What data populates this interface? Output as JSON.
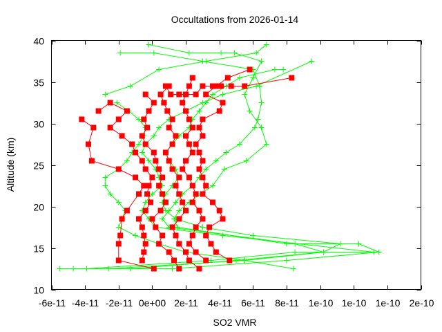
{
  "chart_data": {
    "type": "line",
    "title": "Occultations from 2026-01-14",
    "xlabel": "SO2 VMR",
    "ylabel": "Altitude (km)",
    "xlim": [
      -6e-11,
      1.6e-10
    ],
    "ylim": [
      10,
      40
    ],
    "grid": false,
    "legend": "none",
    "x_tick_labels": [
      "-6e-11",
      "-4e-11",
      "-2e-11",
      "0e+00",
      "2e-11",
      "4e-11",
      "6e-11",
      "8e-11",
      "1e-10",
      "1e-10",
      "1e-10",
      "2e-10"
    ],
    "x_tick_values": [
      -6e-11,
      -4e-11,
      -2e-11,
      0,
      2e-11,
      4e-11,
      6e-11,
      8e-11,
      1e-10,
      1.2e-10,
      1.4e-10,
      1.6e-10
    ],
    "y_tick_labels": [
      "10",
      "15",
      "20",
      "25",
      "30",
      "35",
      "40"
    ],
    "y_tick_values": [
      10,
      15,
      20,
      25,
      30,
      35,
      40
    ],
    "colors": {
      "red_series": "#ff0000",
      "green_series": "#00ff00",
      "frame": "#000000"
    },
    "series": [
      {
        "name": "red-profile-1",
        "color": "#ff0000",
        "marker": "square",
        "points": [
          [
            -4.2e-11,
            30.5
          ],
          [
            -3.5e-11,
            29.5
          ],
          [
            -3.8e-11,
            27.5
          ],
          [
            -3.6e-11,
            25.5
          ],
          [
            -2e-11,
            24.5
          ],
          [
            -1e-11,
            23.5
          ],
          [
            -5e-12,
            22.5
          ],
          [
            -8e-12,
            21.5
          ],
          [
            -1.5e-11,
            19.5
          ],
          [
            -1.8e-11,
            18.5
          ],
          [
            -1.9e-11,
            16.5
          ],
          [
            -2e-11,
            15.5
          ],
          [
            -2e-11,
            13.5
          ],
          [
            1e-12,
            12.5
          ]
        ]
      },
      {
        "name": "red-profile-2",
        "color": "#ff0000",
        "marker": "square",
        "points": [
          [
            -3.2e-11,
            31.5
          ],
          [
            -2.5e-11,
            32.5
          ],
          [
            -1.5e-11,
            31.5
          ],
          [
            -2e-11,
            30.5
          ],
          [
            -2.5e-11,
            29.5
          ],
          [
            -1.8e-11,
            28.5
          ],
          [
            -1.2e-11,
            27.5
          ],
          [
            -1e-11,
            26.5
          ],
          [
            -6e-12,
            25.5
          ],
          [
            -4e-12,
            24.5
          ],
          [
            0,
            23.5
          ],
          [
            -2e-12,
            22.5
          ],
          [
            -3e-12,
            21.5
          ],
          [
            -1e-12,
            20.5
          ],
          [
            -4e-12,
            19.5
          ],
          [
            -8e-12,
            18.5
          ],
          [
            -6e-12,
            17.5
          ],
          [
            -5e-12,
            16.5
          ],
          [
            -4e-12,
            15.5
          ],
          [
            -5e-12,
            14.5
          ],
          [
            -6e-12,
            13.5
          ]
        ]
      },
      {
        "name": "red-profile-3",
        "color": "#ff0000",
        "marker": "square",
        "points": [
          [
            -4e-12,
            33.5
          ],
          [
            1e-12,
            32.5
          ],
          [
            -2e-12,
            31.5
          ],
          [
            -5e-12,
            30.5
          ],
          [
            -3e-12,
            29.5
          ],
          [
            -6e-12,
            28.5
          ],
          [
            -4e-12,
            27.5
          ],
          [
            1e-12,
            26.5
          ],
          [
            2e-12,
            25.5
          ],
          [
            4e-12,
            24.5
          ],
          [
            6e-12,
            23.5
          ],
          [
            4e-12,
            22.5
          ],
          [
            6e-12,
            21.5
          ],
          [
            8e-12,
            20.5
          ],
          [
            5e-12,
            19.5
          ],
          [
            0,
            18.5
          ],
          [
            2e-12,
            17.5
          ],
          [
            6e-12,
            16.5
          ],
          [
            4e-12,
            15.5
          ],
          [
            1e-11,
            14.5
          ],
          [
            1.3e-11,
            13.5
          ],
          [
            1.6e-11,
            12.5
          ]
        ]
      },
      {
        "name": "red-profile-4",
        "color": "#ff0000",
        "marker": "square",
        "points": [
          [
            1e-11,
            34.5
          ],
          [
            5e-12,
            33.5
          ],
          [
            7e-12,
            32.5
          ],
          [
            9e-12,
            31.5
          ],
          [
            1.2e-11,
            30.5
          ],
          [
            1e-11,
            29.5
          ],
          [
            1.4e-11,
            28.5
          ],
          [
            1.2e-11,
            27.5
          ],
          [
            8e-12,
            26.5
          ],
          [
            1e-11,
            25.5
          ],
          [
            1.2e-11,
            24.5
          ],
          [
            1.6e-11,
            23.5
          ],
          [
            1.4e-11,
            22.5
          ],
          [
            1.6e-11,
            21.5
          ],
          [
            1.8e-11,
            20.5
          ],
          [
            2e-11,
            19.5
          ],
          [
            1.6e-11,
            18.5
          ],
          [
            1.2e-11,
            17.5
          ],
          [
            1.4e-11,
            16.5
          ],
          [
            1.6e-11,
            15.5
          ],
          [
            2e-11,
            14.5
          ],
          [
            2.2e-11,
            13.5
          ],
          [
            2.8e-11,
            12.5
          ]
        ]
      },
      {
        "name": "red-profile-5",
        "color": "#ff0000",
        "marker": "square",
        "points": [
          [
            2.4e-11,
            35.5
          ],
          [
            2.2e-11,
            34.5
          ],
          [
            2e-11,
            33.5
          ],
          [
            1.8e-11,
            32.5
          ],
          [
            2e-11,
            31.5
          ],
          [
            2.2e-11,
            30.5
          ],
          [
            2.4e-11,
            29.5
          ],
          [
            2e-11,
            28.5
          ],
          [
            2.2e-11,
            27.5
          ],
          [
            2.4e-11,
            26.5
          ],
          [
            2e-11,
            25.5
          ],
          [
            1.8e-11,
            24.5
          ],
          [
            2.2e-11,
            23.5
          ],
          [
            2.4e-11,
            22.5
          ],
          [
            2.6e-11,
            21.5
          ],
          [
            2.4e-11,
            20.5
          ],
          [
            2.8e-11,
            19.5
          ],
          [
            3e-11,
            18.5
          ],
          [
            2.6e-11,
            17.5
          ],
          [
            2.4e-11,
            16.5
          ],
          [
            2.2e-11,
            15.5
          ],
          [
            2.6e-11,
            14.5
          ],
          [
            3.2e-11,
            13.5
          ]
        ]
      },
      {
        "name": "red-profile-6",
        "color": "#ff0000",
        "marker": "square",
        "points": [
          [
            5.8e-11,
            36.5
          ],
          [
            4.5e-11,
            35.5
          ],
          [
            3.8e-11,
            34.5
          ],
          [
            3.2e-11,
            33.5
          ],
          [
            4.2e-11,
            32.5
          ],
          [
            4e-11,
            31.5
          ],
          [
            3e-11,
            30.5
          ],
          [
            2.8e-11,
            29.5
          ],
          [
            3e-11,
            28.5
          ],
          [
            2.6e-11,
            27.5
          ],
          [
            2.8e-11,
            26.5
          ],
          [
            3e-11,
            25.5
          ],
          [
            2.8e-11,
            24.5
          ],
          [
            3e-11,
            23.5
          ],
          [
            3.2e-11,
            22.5
          ],
          [
            3e-11,
            21.5
          ],
          [
            3.6e-11,
            20.5
          ],
          [
            4e-11,
            19.5
          ],
          [
            4.2e-11,
            18.5
          ],
          [
            3.4e-11,
            17.5
          ],
          [
            3.2e-11,
            16.5
          ],
          [
            3.5e-11,
            15.5
          ],
          [
            3.8e-11,
            14.5
          ],
          [
            4.6e-11,
            13.5
          ]
        ]
      },
      {
        "name": "red-profile-7",
        "color": "#ff0000",
        "marker": "square",
        "points": [
          [
            8.3e-11,
            35.5
          ],
          [
            5.5e-11,
            34.5
          ],
          [
            4.7e-11,
            34.5
          ],
          [
            4.1e-11,
            34.5
          ],
          [
            3.6e-11,
            34.5
          ],
          [
            3e-11,
            34.5
          ],
          [
            2.6e-11,
            33.5
          ],
          [
            1.6e-11,
            33.5
          ],
          [
            1.1e-11,
            33.5
          ],
          [
            8e-12,
            34.5
          ]
        ]
      },
      {
        "name": "green-profile-1",
        "color": "#00ff00",
        "marker": "plus",
        "points": [
          [
            -1.9e-11,
            38.5
          ],
          [
            1e-12,
            38.5
          ],
          [
            3e-11,
            37.5
          ],
          [
            6e-11,
            36.5
          ],
          [
            6.4e-11,
            34.5
          ],
          [
            6.5e-11,
            32.5
          ],
          [
            6.3e-11,
            30.5
          ],
          [
            6.1e-11,
            29.5
          ],
          [
            5.2e-11,
            27.5
          ],
          [
            4.4e-11,
            26.5
          ],
          [
            3.8e-11,
            25.5
          ],
          [
            3.2e-11,
            24.5
          ],
          [
            2.8e-11,
            23.5
          ],
          [
            2.4e-11,
            22.5
          ],
          [
            1.8e-11,
            21.5
          ],
          [
            1.4e-11,
            20.5
          ],
          [
            1e-11,
            19.5
          ],
          [
            6e-12,
            18.5
          ],
          [
            1e-11,
            17.5
          ],
          [
            8.5e-11,
            15.5
          ],
          [
            1.02e-10,
            14.5
          ],
          [
            5e-11,
            13.5
          ],
          [
            -1.3e-11,
            12.5
          ],
          [
            -4.7e-11,
            12.5
          ]
        ]
      },
      {
        "name": "green-profile-2",
        "color": "#00ff00",
        "marker": "plus",
        "points": [
          [
            -2e-12,
            39.5
          ],
          [
            2.2e-11,
            38.5
          ],
          [
            4.1e-11,
            38.5
          ],
          [
            4.9e-11,
            38.5
          ],
          [
            6.5e-11,
            37.5
          ],
          [
            6e-11,
            35.5
          ],
          [
            5.5e-11,
            33.5
          ],
          [
            5.8e-11,
            31.5
          ],
          [
            6.5e-11,
            29.5
          ],
          [
            6.8e-11,
            27.5
          ],
          [
            5.6e-11,
            25.5
          ],
          [
            4.3e-11,
            24.5
          ],
          [
            3.6e-11,
            22.5
          ],
          [
            2.9e-11,
            21.5
          ],
          [
            2.2e-11,
            20.5
          ],
          [
            1.6e-11,
            19.5
          ],
          [
            1.3e-11,
            18.5
          ],
          [
            1.5e-11,
            17.5
          ],
          [
            8e-11,
            15.5
          ],
          [
            1.23e-10,
            15.5
          ],
          [
            1.35e-10,
            14.5
          ],
          [
            8e-11,
            13.5
          ],
          [
            1.2e-11,
            12.5
          ],
          [
            -5.5e-11,
            12.5
          ]
        ]
      },
      {
        "name": "green-profile-3",
        "color": "#00ff00",
        "marker": "plus",
        "points": [
          [
            -2.1e-11,
            32.5
          ],
          [
            -1.4e-11,
            31.5
          ],
          [
            -8e-12,
            30.5
          ],
          [
            -4e-12,
            29.5
          ],
          [
            -5e-12,
            28.5
          ],
          [
            -8e-12,
            27.5
          ],
          [
            -1.2e-11,
            26.5
          ],
          [
            -1.5e-11,
            25.5
          ],
          [
            -2e-11,
            24.5
          ],
          [
            -2.8e-11,
            23.5
          ],
          [
            -2.8e-11,
            22.5
          ],
          [
            -2.5e-11,
            21.5
          ],
          [
            -2e-11,
            20.5
          ],
          [
            -1.6e-11,
            19.5
          ],
          [
            -1.8e-11,
            18.5
          ],
          [
            -2e-11,
            17.5
          ],
          [
            -1e-11,
            16.5
          ],
          [
            4e-12,
            15.5
          ],
          [
            2e-11,
            14.5
          ],
          [
            5.5e-11,
            13.5
          ],
          [
            8.4e-11,
            12.5
          ]
        ]
      },
      {
        "name": "green-profile-4",
        "color": "#00ff00",
        "marker": "plus",
        "points": [
          [
            -2.8e-11,
            33.5
          ],
          [
            -1.3e-11,
            34.5
          ],
          [
            4e-12,
            36.5
          ],
          [
            3.2e-11,
            37.5
          ],
          [
            6.2e-11,
            38.5
          ],
          [
            6.8e-11,
            39.5
          ]
        ]
      },
      {
        "name": "green-profile-5",
        "color": "#00ff00",
        "marker": "plus",
        "points": [
          [
            9.5e-11,
            37.5
          ],
          [
            6.2e-11,
            34.5
          ],
          [
            4.2e-11,
            33.5
          ],
          [
            3e-11,
            32.5
          ],
          [
            2e-11,
            31.5
          ],
          [
            1e-11,
            30.5
          ],
          [
            4e-12,
            29.5
          ],
          [
            1e-12,
            28.5
          ],
          [
            -4e-12,
            27.5
          ],
          [
            -6e-12,
            26.5
          ],
          [
            -2e-12,
            25.5
          ],
          [
            2e-12,
            24.5
          ],
          [
            4e-12,
            23.5
          ],
          [
            6e-12,
            22.5
          ],
          [
            0,
            21.5
          ],
          [
            -4e-12,
            20.5
          ],
          [
            -6e-12,
            19.5
          ],
          [
            -2e-12,
            18.5
          ],
          [
            2e-12,
            17.5
          ],
          [
            4.2e-11,
            16.5
          ],
          [
            1.32e-10,
            14.5
          ],
          [
            8.5e-11,
            14.5
          ],
          [
            3.5e-11,
            13.5
          ],
          [
            -3.9e-11,
            12.5
          ]
        ]
      },
      {
        "name": "green-profile-6",
        "color": "#00ff00",
        "marker": "plus",
        "points": [
          [
            7.8e-11,
            36.5
          ],
          [
            7.3e-11,
            36.5
          ],
          [
            5.2e-11,
            35.5
          ],
          [
            4.4e-11,
            34.5
          ],
          [
            3.6e-11,
            33.5
          ],
          [
            3.2e-11,
            32.5
          ],
          [
            2.8e-11,
            31.5
          ],
          [
            2.4e-11,
            30.5
          ],
          [
            2.2e-11,
            29.5
          ],
          [
            1.6e-11,
            28.5
          ],
          [
            1.2e-11,
            27.5
          ],
          [
            8e-12,
            26.5
          ],
          [
            1e-11,
            25.5
          ],
          [
            1.4e-11,
            24.5
          ],
          [
            1.6e-11,
            23.5
          ],
          [
            1.2e-11,
            22.5
          ],
          [
            8e-12,
            21.5
          ],
          [
            6e-12,
            20.5
          ],
          [
            8e-12,
            19.5
          ],
          [
            1.4e-11,
            18.5
          ],
          [
            3e-11,
            17.5
          ],
          [
            6e-11,
            16.5
          ],
          [
            1.12e-10,
            15.5
          ],
          [
            1.02e-10,
            14.5
          ],
          [
            5.5e-11,
            13.5
          ],
          [
            -2.6e-11,
            12.5
          ]
        ]
      }
    ]
  }
}
